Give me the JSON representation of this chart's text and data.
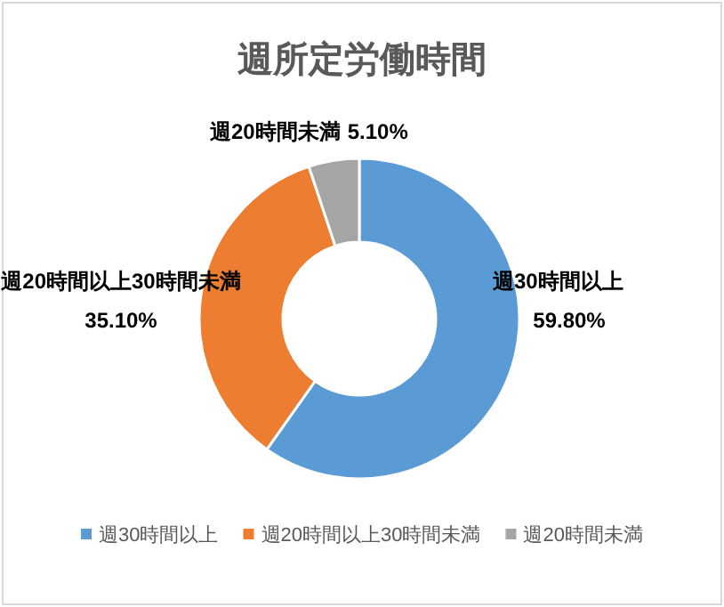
{
  "chart_data": {
    "type": "donut",
    "title": "週所定労働時間",
    "categories": [
      "週30時間以上",
      "週20時間以上30時間未満",
      "週20時間未満"
    ],
    "values": [
      59.8,
      35.1,
      5.1
    ],
    "value_labels": [
      "59.80%",
      "35.10%",
      "5.10%"
    ],
    "colors": [
      "#5b9bd5",
      "#ed7d31",
      "#a5a5a5"
    ],
    "legend": "bottom"
  }
}
